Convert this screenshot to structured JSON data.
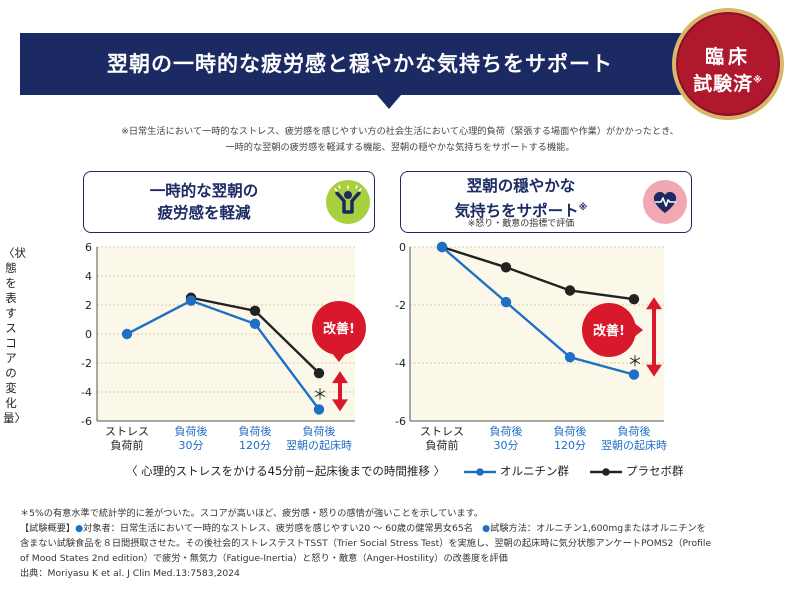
{
  "banner": {
    "title": "翌朝の一時的な疲労感と穏やかな気持ちをサポート"
  },
  "seal": {
    "line1": "臨床",
    "line2": "試験済",
    "mark": "※"
  },
  "note": {
    "line1": "※日常生活において一時的なストレス、疲労感を感じやすい方の社会生活において心理的負荷（緊張する場面や作業）がかかったとき、",
    "line2": "一時的な翌朝の疲労感を軽減する機能、翌朝の穏やかな気持ちをサポートする機能。"
  },
  "left_card": {
    "title_line1": "一時的な翌朝の",
    "title_line2": "疲労感を軽減",
    "icon": "person-cheer-icon"
  },
  "right_card": {
    "title_line1": "翌朝の穏やかな",
    "title_line2": "気持ちをサポート",
    "mark": "※",
    "subtitle": "※怒り・敵意の指標で評価",
    "icon": "heart-pulse-icon"
  },
  "yaxis_title": "〈状態を表すスコアの変化量〉",
  "legend": {
    "timeline": "〈 心理的ストレスをかける45分前~起床後までの時間推移 〉",
    "blue": "オルニチン群",
    "black": "プラセボ群"
  },
  "colors": {
    "navy": "#1c2a63",
    "blue": "#1f6fc4",
    "black": "#222222",
    "red": "#d7192b",
    "plotbg": "#fbf8ea",
    "grid": "#c8c29a"
  },
  "chart_data": [
    {
      "type": "line",
      "categories": [
        "ストレス\n負荷前",
        "負荷後\n30分",
        "負荷後\n120分",
        "負荷後\n翌朝の起床時"
      ],
      "category_highlight": [
        false,
        true,
        true,
        true
      ],
      "ylim": [
        -6,
        6
      ],
      "yticks": [
        "-6",
        "-4",
        "-2",
        "0",
        "2",
        "4",
        "6"
      ],
      "ytick_values": [
        -6,
        -4,
        -2,
        0,
        2,
        4,
        6
      ],
      "series": [
        {
          "name": "オルニチン群",
          "values": [
            0,
            2.3,
            0.7,
            -5.2
          ]
        },
        {
          "name": "プラセボ群",
          "values": [
            null,
            2.5,
            1.6,
            -2.7
          ]
        }
      ],
      "annotations": {
        "badge": "改善!",
        "star": "＊"
      }
    },
    {
      "type": "line",
      "categories": [
        "ストレス\n負荷前",
        "負荷後\n30分",
        "負荷後\n120分",
        "負荷後\n翌朝の起床時"
      ],
      "category_highlight": [
        false,
        true,
        true,
        true
      ],
      "ylim": [
        -6,
        0
      ],
      "yticks": [
        "-6",
        "-4",
        "-2",
        "0"
      ],
      "ytick_values": [
        -6,
        -4,
        -2,
        0
      ],
      "series": [
        {
          "name": "オルニチン群",
          "values": [
            0,
            -1.9,
            -3.8,
            -4.4
          ]
        },
        {
          "name": "プラセボ群",
          "values": [
            0,
            -0.7,
            -1.5,
            -1.8
          ]
        }
      ],
      "annotations": {
        "badge": "改善!",
        "star": "＊"
      }
    }
  ],
  "footnotes": {
    "line1": "＊5%の有意水準で統計学的に差がついた。スコアが高いほど、疲労感・怒りの感情が強いことを示しています。",
    "line2a": "【試験概要】",
    "line2b": "●",
    "line2c": "対象者：日常生活において一時的なストレス、疲労感を感じやすい20 ～ 60歳の健常男女65名",
    "line2d": "●",
    "line2e": "試験方法：オルニチン1,600mgまたはオルニチンを",
    "line3": "含まない試験食品を８日間摂取させた。その後社会的ストレステストTSST（Trier Social Stress Test）を実施し、翌朝の起床時に気分状態アンケートPOMS2（Profile",
    "line4": "of Mood States 2nd edition）で疲労・無気力（Fatigue-Inertia）と怒り・敵意（Anger-Hostility）の改善度を評価",
    "line5": "出典：Moriyasu K et al. J Clin Med.13:7583,2024"
  }
}
